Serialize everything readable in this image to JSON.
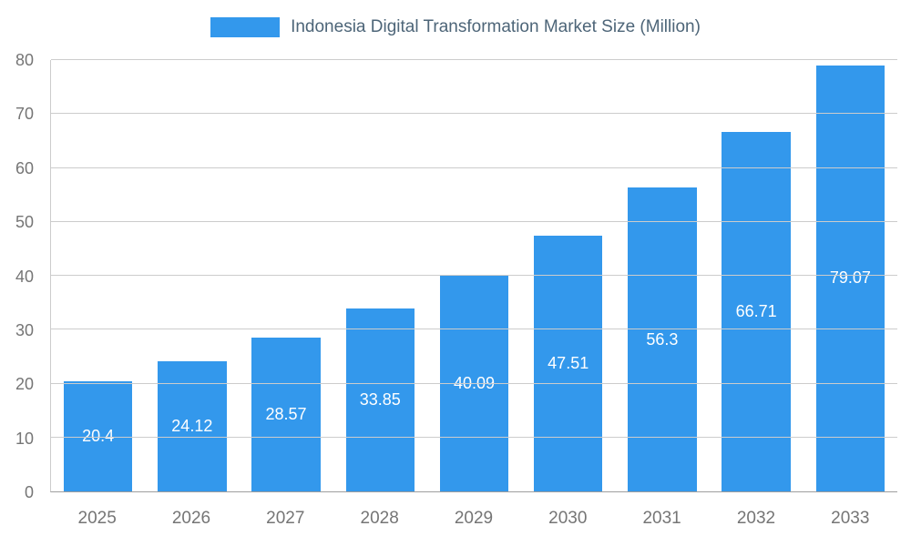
{
  "chart_data": {
    "type": "bar",
    "title": "Indonesia Digital Transformation Market Size (Million)",
    "categories": [
      "2025",
      "2026",
      "2027",
      "2028",
      "2029",
      "2030",
      "2031",
      "2032",
      "2033"
    ],
    "values": [
      20.4,
      24.12,
      28.57,
      33.85,
      40.09,
      47.51,
      56.3,
      66.71,
      79.07
    ],
    "value_labels": [
      "20.4",
      "24.12",
      "28.57",
      "33.85",
      "40.09",
      "47.51",
      "56.3",
      "66.71",
      "79.07"
    ],
    "xlabel": "",
    "ylabel": "",
    "ylim": [
      0,
      80
    ],
    "ytick_step": 10,
    "ytick_labels": [
      "0",
      "10",
      "20",
      "30",
      "40",
      "50",
      "60",
      "70",
      "80"
    ],
    "grid": true,
    "legend_position": "top",
    "colors": {
      "bar": "#3398ec",
      "bar_label": "#ffffff",
      "title_text": "#4d6578",
      "axis_text": "#757575",
      "gridline": "#cccccc",
      "axis_line": "#9e9e9e"
    }
  }
}
